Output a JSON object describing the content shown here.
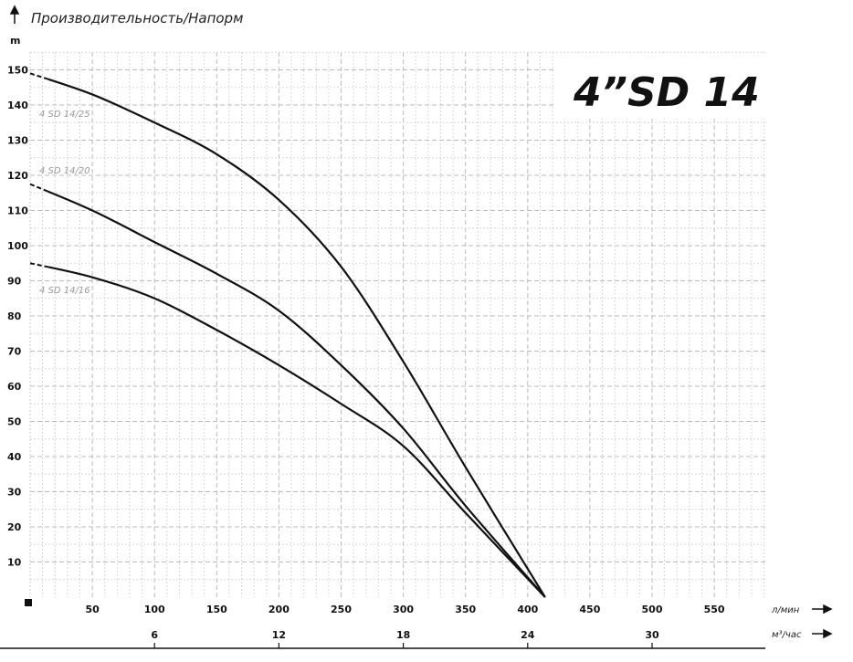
{
  "chart_data": {
    "type": "line",
    "title": "Производительность/Напорм",
    "big_label": "4”SD 14",
    "ylabel": "m",
    "xlabel": "л/мин",
    "x2label": "м³/час",
    "xlim": [
      0,
      590
    ],
    "ylim": [
      0,
      155
    ],
    "grid": true,
    "yticks": [
      10,
      20,
      30,
      40,
      50,
      60,
      70,
      80,
      90,
      100,
      110,
      120,
      130,
      140,
      150
    ],
    "xticks": [
      50,
      100,
      150,
      200,
      250,
      300,
      350,
      400,
      450,
      500,
      550
    ],
    "x2ticks": [
      6,
      12,
      18,
      24,
      30
    ],
    "series": [
      {
        "name": "4 SD 14/25",
        "x": [
          0,
          50,
          100,
          150,
          200,
          250,
          300,
          350,
          414
        ],
        "y": [
          149,
          143,
          135,
          126,
          113,
          94,
          67,
          37,
          0
        ]
      },
      {
        "name": "4 SD 14/20",
        "x": [
          0,
          50,
          100,
          150,
          200,
          250,
          300,
          350,
          414
        ],
        "y": [
          117.5,
          110,
          101,
          92,
          81.5,
          66,
          48,
          26,
          0
        ]
      },
      {
        "name": "4 SD 14/16",
        "x": [
          0,
          50,
          100,
          150,
          200,
          250,
          300,
          350,
          414
        ],
        "y": [
          95,
          91,
          85,
          76,
          66,
          55,
          43,
          24,
          0
        ]
      }
    ]
  }
}
